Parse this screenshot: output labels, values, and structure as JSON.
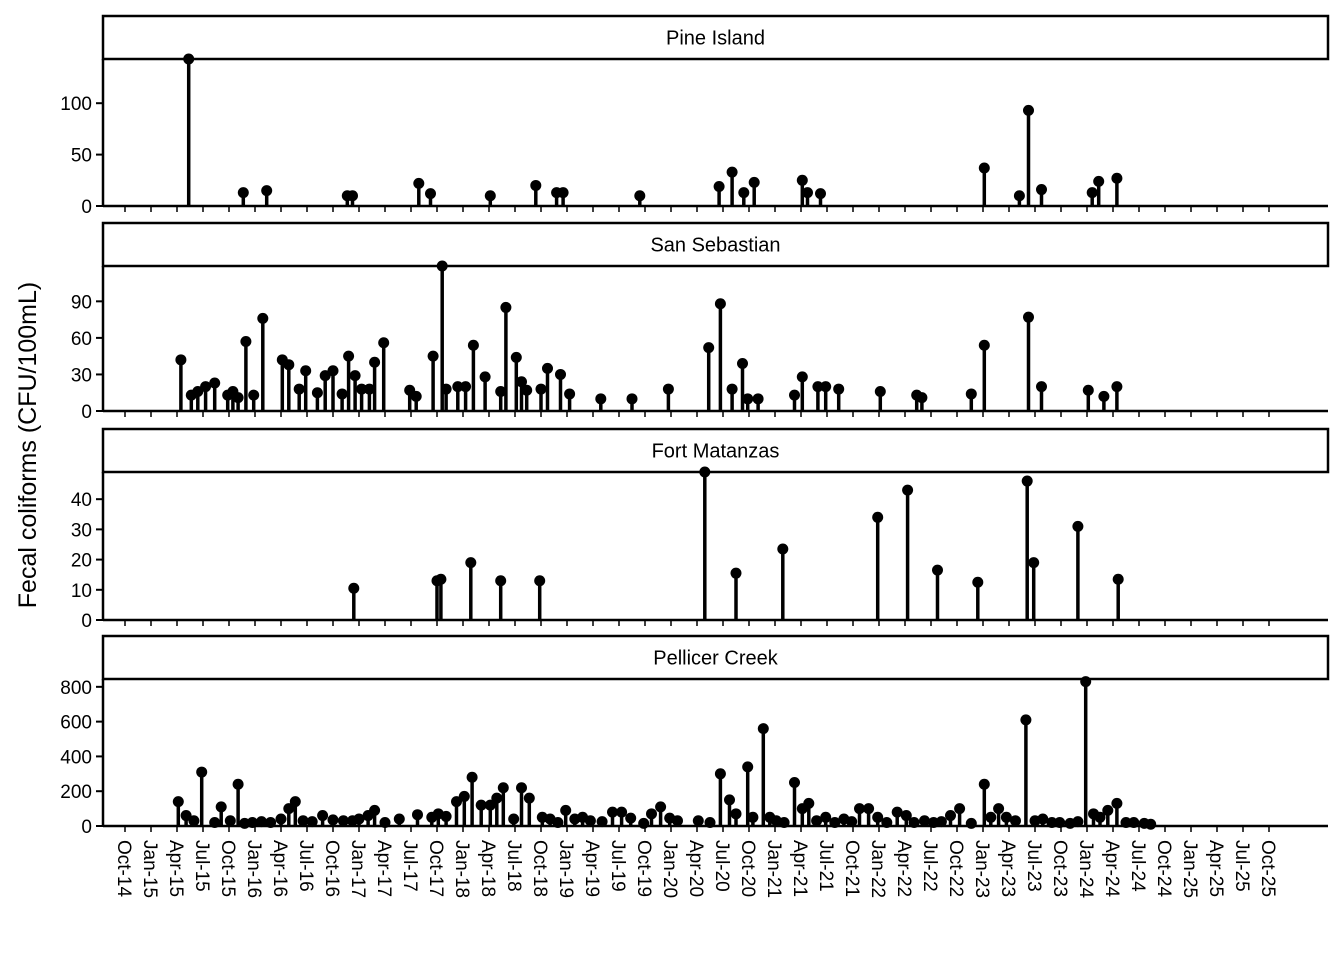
{
  "chart_data": {
    "type": "lollipop",
    "ylabel": "Fecal coliforms (CFU/100mL)",
    "x_ticks": [
      "Oct-14",
      "Jan-15",
      "Apr-15",
      "Jul-15",
      "Oct-15",
      "Jan-16",
      "Apr-16",
      "Jul-16",
      "Oct-16",
      "Jan-17",
      "Apr-17",
      "Jul-17",
      "Oct-17",
      "Jan-18",
      "Apr-18",
      "Jul-18",
      "Oct-18",
      "Jan-19",
      "Apr-19",
      "Jul-19",
      "Oct-19",
      "Jan-20",
      "Apr-20",
      "Jul-20",
      "Oct-20",
      "Jan-21",
      "Apr-21",
      "Jul-21",
      "Oct-21",
      "Jan-22",
      "Apr-22",
      "Jul-22",
      "Oct-22",
      "Jan-23",
      "Apr-23",
      "Jul-23",
      "Oct-23",
      "Jan-24",
      "Apr-24",
      "Jul-24",
      "Oct-24",
      "Jan-25",
      "Apr-25",
      "Jul-25",
      "Oct-25"
    ],
    "panels": [
      {
        "name": "Pine Island",
        "yticks": [
          0,
          50,
          100
        ],
        "ylim": [
          0,
          143
        ],
        "points": [
          [
            2.45,
            143
          ],
          [
            4.55,
            13
          ],
          [
            5.45,
            15
          ],
          [
            8.55,
            10
          ],
          [
            8.75,
            10
          ],
          [
            11.3,
            22
          ],
          [
            11.75,
            12
          ],
          [
            14.05,
            10
          ],
          [
            15.8,
            20
          ],
          [
            16.6,
            13
          ],
          [
            16.85,
            13
          ],
          [
            19.8,
            10
          ],
          [
            22.85,
            19
          ],
          [
            23.35,
            33
          ],
          [
            23.8,
            13
          ],
          [
            24.2,
            23
          ],
          [
            26.05,
            25
          ],
          [
            26.25,
            13
          ],
          [
            26.75,
            12
          ],
          [
            33.05,
            37
          ],
          [
            34.4,
            10
          ],
          [
            34.75,
            93
          ],
          [
            35.25,
            16
          ],
          [
            37.2,
            13
          ],
          [
            37.45,
            24
          ],
          [
            38.15,
            27
          ]
        ]
      },
      {
        "name": "San Sebastian",
        "yticks": [
          0,
          30,
          60,
          90
        ],
        "ylim": [
          0,
          119
        ],
        "points": [
          [
            2.15,
            42
          ],
          [
            2.55,
            13
          ],
          [
            2.8,
            16
          ],
          [
            3.1,
            20
          ],
          [
            3.45,
            23
          ],
          [
            3.95,
            13
          ],
          [
            4.15,
            16
          ],
          [
            4.35,
            11
          ],
          [
            4.65,
            57
          ],
          [
            4.95,
            13
          ],
          [
            5.3,
            76
          ],
          [
            6.05,
            42
          ],
          [
            6.3,
            38
          ],
          [
            6.7,
            18
          ],
          [
            6.95,
            33
          ],
          [
            7.4,
            15
          ],
          [
            7.7,
            29
          ],
          [
            8.0,
            33
          ],
          [
            8.35,
            14
          ],
          [
            8.6,
            45
          ],
          [
            8.85,
            29
          ],
          [
            9.1,
            18
          ],
          [
            9.4,
            18
          ],
          [
            9.6,
            40
          ],
          [
            9.95,
            56
          ],
          [
            10.95,
            17
          ],
          [
            11.2,
            12
          ],
          [
            11.85,
            45
          ],
          [
            12.2,
            119
          ],
          [
            12.35,
            18
          ],
          [
            12.8,
            20
          ],
          [
            13.1,
            20
          ],
          [
            13.4,
            54
          ],
          [
            13.85,
            28
          ],
          [
            14.45,
            16
          ],
          [
            14.65,
            85
          ],
          [
            15.05,
            44
          ],
          [
            15.25,
            24
          ],
          [
            15.45,
            17
          ],
          [
            16.0,
            18
          ],
          [
            16.25,
            35
          ],
          [
            16.75,
            30
          ],
          [
            17.1,
            14
          ],
          [
            18.3,
            10
          ],
          [
            19.5,
            10
          ],
          [
            20.9,
            18
          ],
          [
            22.45,
            52
          ],
          [
            22.9,
            88
          ],
          [
            23.35,
            18
          ],
          [
            23.75,
            39
          ],
          [
            23.95,
            10
          ],
          [
            24.35,
            10
          ],
          [
            25.75,
            13
          ],
          [
            26.05,
            28
          ],
          [
            26.65,
            20
          ],
          [
            26.95,
            20
          ],
          [
            27.45,
            18
          ],
          [
            29.05,
            16
          ],
          [
            30.45,
            13
          ],
          [
            30.65,
            11
          ],
          [
            32.55,
            14
          ],
          [
            33.05,
            54
          ],
          [
            34.75,
            77
          ],
          [
            35.25,
            20
          ],
          [
            37.05,
            17
          ],
          [
            37.65,
            12
          ],
          [
            38.15,
            20
          ]
        ]
      },
      {
        "name": "Fort Matanzas",
        "yticks": [
          0,
          10,
          20,
          30,
          40
        ],
        "ylim": [
          0,
          49
        ],
        "points": [
          [
            8.8,
            10.5
          ],
          [
            12.0,
            13
          ],
          [
            12.15,
            13.5
          ],
          [
            13.3,
            19
          ],
          [
            14.45,
            13
          ],
          [
            15.95,
            13
          ],
          [
            22.3,
            49
          ],
          [
            23.5,
            15.5
          ],
          [
            25.3,
            23.5
          ],
          [
            28.95,
            34
          ],
          [
            30.1,
            43
          ],
          [
            31.25,
            16.5
          ],
          [
            32.8,
            12.5
          ],
          [
            34.7,
            46
          ],
          [
            34.95,
            19
          ],
          [
            36.65,
            31
          ],
          [
            38.2,
            13.5
          ]
        ]
      },
      {
        "name": "Pellicer Creek",
        "yticks": [
          0,
          200,
          400,
          600,
          800
        ],
        "ylim": [
          0,
          845
        ],
        "points": [
          [
            2.05,
            140
          ],
          [
            2.35,
            60
          ],
          [
            2.65,
            30
          ],
          [
            2.95,
            310
          ],
          [
            3.45,
            20
          ],
          [
            3.7,
            110
          ],
          [
            4.05,
            30
          ],
          [
            4.35,
            240
          ],
          [
            4.6,
            15
          ],
          [
            4.9,
            20
          ],
          [
            5.25,
            25
          ],
          [
            5.6,
            20
          ],
          [
            6.0,
            40
          ],
          [
            6.3,
            100
          ],
          [
            6.55,
            140
          ],
          [
            6.85,
            30
          ],
          [
            7.2,
            25
          ],
          [
            7.6,
            60
          ],
          [
            8.0,
            35
          ],
          [
            8.4,
            30
          ],
          [
            8.75,
            30
          ],
          [
            9.0,
            40
          ],
          [
            9.35,
            60
          ],
          [
            9.6,
            90
          ],
          [
            10.0,
            20
          ],
          [
            10.55,
            40
          ],
          [
            11.25,
            65
          ],
          [
            11.8,
            50
          ],
          [
            12.05,
            70
          ],
          [
            12.35,
            55
          ],
          [
            12.75,
            140
          ],
          [
            13.05,
            170
          ],
          [
            13.35,
            280
          ],
          [
            13.7,
            120
          ],
          [
            14.05,
            120
          ],
          [
            14.3,
            160
          ],
          [
            14.55,
            220
          ],
          [
            14.95,
            40
          ],
          [
            15.25,
            220
          ],
          [
            15.55,
            160
          ],
          [
            16.05,
            50
          ],
          [
            16.35,
            40
          ],
          [
            16.65,
            20
          ],
          [
            16.95,
            90
          ],
          [
            17.3,
            40
          ],
          [
            17.6,
            50
          ],
          [
            17.9,
            30
          ],
          [
            18.35,
            25
          ],
          [
            18.75,
            80
          ],
          [
            19.1,
            80
          ],
          [
            19.45,
            45
          ],
          [
            19.95,
            15
          ],
          [
            20.25,
            70
          ],
          [
            20.6,
            110
          ],
          [
            20.95,
            45
          ],
          [
            21.25,
            30
          ],
          [
            22.05,
            30
          ],
          [
            22.5,
            20
          ],
          [
            22.9,
            300
          ],
          [
            23.25,
            150
          ],
          [
            23.5,
            70
          ],
          [
            23.95,
            340
          ],
          [
            24.15,
            50
          ],
          [
            24.55,
            560
          ],
          [
            24.8,
            50
          ],
          [
            25.05,
            30
          ],
          [
            25.35,
            20
          ],
          [
            25.75,
            250
          ],
          [
            26.05,
            100
          ],
          [
            26.3,
            130
          ],
          [
            26.6,
            30
          ],
          [
            26.95,
            50
          ],
          [
            27.3,
            20
          ],
          [
            27.65,
            40
          ],
          [
            27.95,
            25
          ],
          [
            28.25,
            100
          ],
          [
            28.6,
            100
          ],
          [
            28.95,
            50
          ],
          [
            29.3,
            20
          ],
          [
            29.7,
            80
          ],
          [
            30.05,
            60
          ],
          [
            30.35,
            20
          ],
          [
            30.75,
            30
          ],
          [
            31.1,
            20
          ],
          [
            31.4,
            25
          ],
          [
            31.75,
            60
          ],
          [
            32.1,
            100
          ],
          [
            32.55,
            15
          ],
          [
            33.05,
            240
          ],
          [
            33.3,
            50
          ],
          [
            33.6,
            100
          ],
          [
            33.9,
            50
          ],
          [
            34.25,
            30
          ],
          [
            34.65,
            610
          ],
          [
            35.0,
            30
          ],
          [
            35.3,
            40
          ],
          [
            35.65,
            20
          ],
          [
            35.95,
            20
          ],
          [
            36.35,
            15
          ],
          [
            36.65,
            25
          ],
          [
            36.95,
            830
          ],
          [
            37.25,
            70
          ],
          [
            37.5,
            50
          ],
          [
            37.8,
            90
          ],
          [
            38.15,
            130
          ],
          [
            38.5,
            20
          ],
          [
            38.8,
            20
          ],
          [
            39.2,
            15
          ],
          [
            39.45,
            10
          ]
        ]
      }
    ]
  }
}
